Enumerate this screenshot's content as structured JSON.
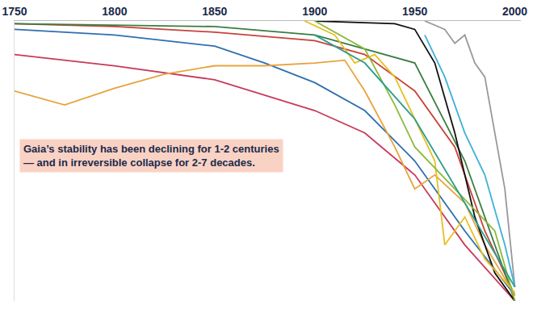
{
  "chart_data": {
    "type": "line",
    "annotation": "Gaia’s stability has been declining for 1-2 centuries — and in irreversible collapse for 2-7 decades.",
    "xlim": [
      1750,
      2003
    ],
    "xticks": [
      1750,
      1800,
      1850,
      1900,
      1950,
      2000
    ],
    "ylim": [
      0,
      100
    ],
    "yticks": [],
    "tick_labels": "x",
    "grid": false,
    "series": [
      {
        "color": "#c8423a",
        "x": [
          1750,
          1800,
          1850,
          1900,
          1925,
          1950,
          1970,
          1985,
          2000
        ],
        "values": [
          99,
          98,
          96,
          93,
          88,
          75,
          55,
          25,
          2
        ]
      },
      {
        "color": "#3a7d44",
        "x": [
          1750,
          1850,
          1900,
          1950,
          1975,
          2000
        ],
        "values": [
          99,
          98,
          95,
          85,
          50,
          0
        ]
      },
      {
        "color": "#2e6fb0",
        "x": [
          1750,
          1800,
          1850,
          1875,
          1900,
          1925,
          1950,
          1975,
          2000
        ],
        "values": [
          97,
          95,
          91,
          85,
          78,
          68,
          50,
          25,
          2
        ]
      },
      {
        "color": "#c83a5a",
        "x": [
          1750,
          1800,
          1850,
          1900,
          1925,
          1950,
          1975,
          2000
        ],
        "values": [
          88,
          84,
          79,
          68,
          60,
          45,
          20,
          0
        ]
      },
      {
        "color": "#e8a33c",
        "x": [
          1750,
          1775,
          1800,
          1825,
          1850,
          1875,
          1900,
          1915,
          1925,
          1940,
          1950,
          1960,
          1975,
          1985,
          2000
        ],
        "values": [
          75,
          70,
          76,
          81,
          84,
          84,
          85,
          86,
          75,
          55,
          40,
          45,
          35,
          20,
          2
        ]
      },
      {
        "color": "#111111",
        "x": [
          1900,
          1940,
          1950,
          1960,
          1970,
          1980,
          1990,
          2000
        ],
        "values": [
          100,
          99,
          97,
          85,
          60,
          30,
          10,
          0
        ]
      },
      {
        "color": "#999999",
        "x": [
          1955,
          1965,
          1970,
          1975,
          1980,
          1985,
          1990,
          1995,
          2000
        ],
        "values": [
          100,
          97,
          92,
          95,
          85,
          80,
          60,
          40,
          5
        ]
      },
      {
        "color": "#3fb0d8",
        "x": [
          1955,
          1965,
          1975,
          1985,
          1995,
          2000
        ],
        "values": [
          95,
          80,
          60,
          45,
          20,
          5
        ]
      },
      {
        "color": "#e6c020",
        "x": [
          1895,
          1910,
          1920,
          1930,
          1940,
          1950,
          1960,
          1965,
          1975,
          1985,
          2000
        ],
        "values": [
          100,
          95,
          85,
          88,
          80,
          65,
          50,
          20,
          30,
          15,
          3
        ]
      },
      {
        "color": "#8cb83c",
        "x": [
          1900,
          1925,
          1940,
          1950,
          1970,
          1990,
          2000
        ],
        "values": [
          100,
          90,
          70,
          55,
          40,
          25,
          0
        ]
      },
      {
        "color": "#2a9d8f",
        "x": [
          1900,
          1925,
          1950,
          1975,
          2000
        ],
        "values": [
          95,
          85,
          65,
          35,
          5
        ]
      }
    ]
  }
}
